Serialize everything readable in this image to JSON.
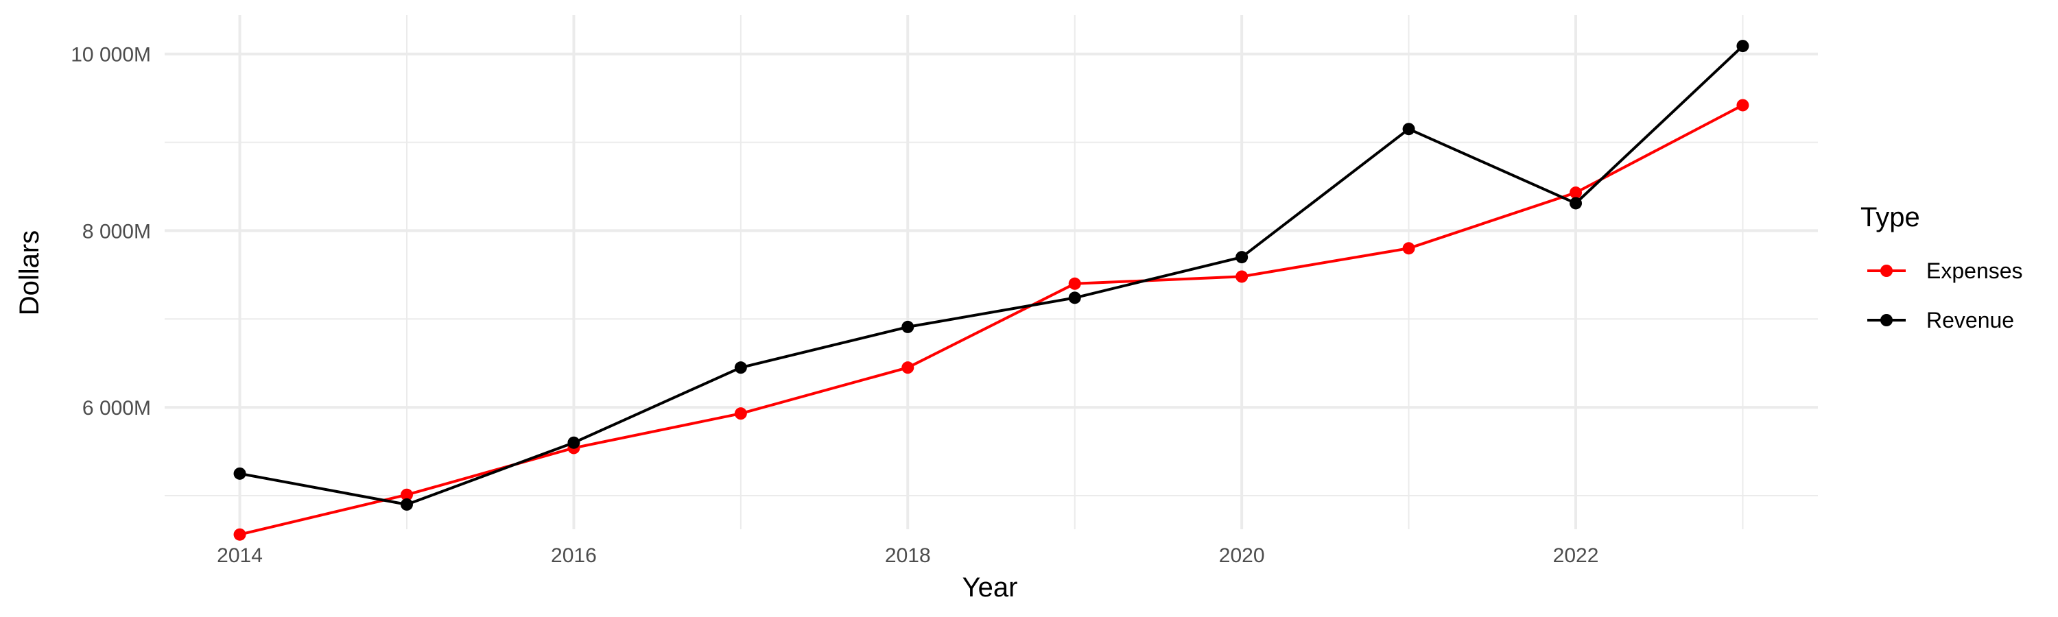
{
  "chart_data": {
    "type": "line",
    "xlabel": "Year",
    "ylabel": "Dollars",
    "xlim": [
      2013.55,
      2023.45
    ],
    "ylim": [
      4620,
      10440
    ],
    "x_ticks": [
      2014,
      2016,
      2018,
      2020,
      2022
    ],
    "y_ticks": [
      6000,
      8000,
      10000
    ],
    "y_tick_labels": [
      "6 000M",
      "8 000M",
      "10 000M"
    ],
    "y_minor_ticks": [
      5000,
      7000,
      9000
    ],
    "x_minor_ticks": [
      2015,
      2017,
      2019,
      2021,
      2023
    ],
    "grid": true,
    "legend": {
      "title": "Type",
      "position": "right"
    },
    "x": [
      2014,
      2015,
      2016,
      2017,
      2018,
      2019,
      2020,
      2021,
      2022,
      2023
    ],
    "series": [
      {
        "name": "Expenses",
        "color": "#ff0000",
        "values": [
          4560,
          5010,
          5540,
          5930,
          6450,
          7400,
          7480,
          7800,
          8430,
          9420
        ]
      },
      {
        "name": "Revenue",
        "color": "#000000",
        "values": [
          5250,
          4900,
          5600,
          6450,
          6910,
          7240,
          7700,
          9150,
          8310,
          10090
        ]
      }
    ]
  }
}
